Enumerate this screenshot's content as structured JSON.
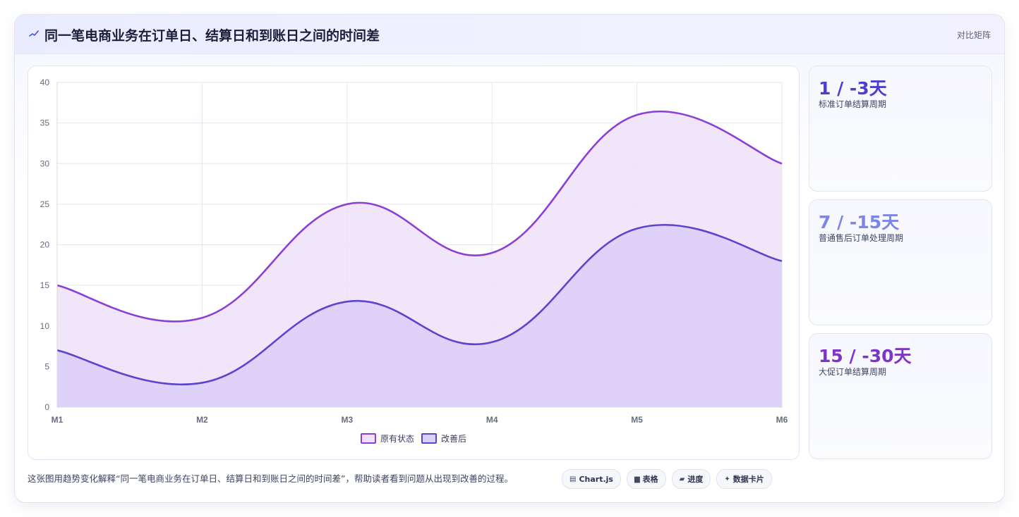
{
  "header": {
    "icon": "sparkline-icon",
    "title": "同一笔电商业务在订单日、结算日和到账日之间的时间差",
    "right_label": "对比矩阵"
  },
  "stats": [
    {
      "value": "1 / -3天",
      "label": "标准订单结算周期",
      "color": "#4b3fd1"
    },
    {
      "value": "7 / -15天",
      "label": "普通售后订单处理周期",
      "color": "#7b86e6"
    },
    {
      "value": "15 / -30天",
      "label": "大促订单结算周期",
      "color": "#7e34c9"
    }
  ],
  "caption": "这张图用趋势变化解释“同一笔电商业务在订单日、结算日和到账日之间的时间差”，帮助读者看到问题从出现到改善的过程。",
  "chips": [
    {
      "icon": "chart-icon",
      "glyph": "▤",
      "label": "Chart.js"
    },
    {
      "icon": "table-icon",
      "glyph": "▆",
      "label": "表格"
    },
    {
      "icon": "progress-icon",
      "glyph": "▰",
      "label": "进度"
    },
    {
      "icon": "data-card-icon",
      "glyph": "✦",
      "label": "数据卡片"
    }
  ],
  "chart_data": {
    "type": "area",
    "categories": [
      "M1",
      "M2",
      "M3",
      "M4",
      "M5",
      "M6"
    ],
    "series": [
      {
        "name": "原有状态",
        "values": [
          15,
          11,
          25,
          19,
          36,
          30
        ],
        "color": "#8a3fd6",
        "fill": "#efe1f9"
      },
      {
        "name": "改善后",
        "values": [
          7,
          3,
          13,
          8,
          22,
          18
        ],
        "color": "#5b45d0",
        "fill": "#dccff8"
      }
    ],
    "ylim": [
      0,
      40
    ],
    "yticks": [
      0,
      5,
      10,
      15,
      20,
      25,
      30,
      35,
      40
    ],
    "grid": true,
    "legend": "bottom-center",
    "smooth": true
  }
}
